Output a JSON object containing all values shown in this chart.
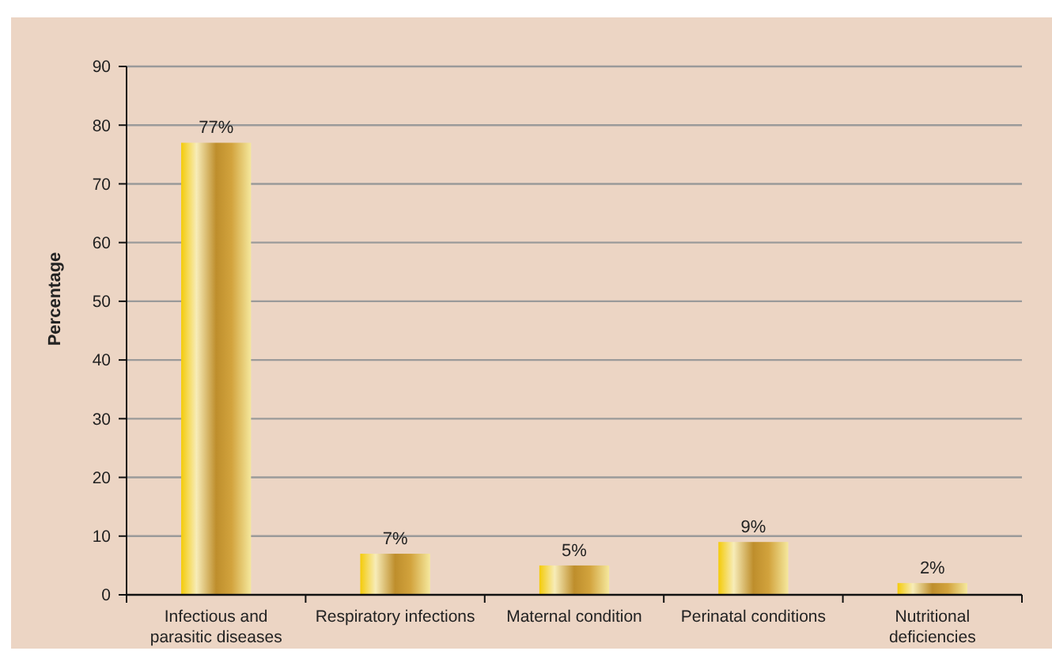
{
  "chart_data": {
    "type": "bar",
    "ylabel": "Percentage",
    "categories": [
      "Infectious and parasitic diseases",
      "Respiratory infections",
      "Maternal condition",
      "Perinatal conditions",
      "Nutritional deficiencies"
    ],
    "values": [
      77,
      7,
      5,
      9,
      2
    ],
    "value_labels": [
      "77%",
      "7%",
      "5%",
      "9%",
      "2%"
    ],
    "color": "#c8962e",
    "ylim": [
      0,
      90
    ],
    "yticks": [
      0,
      10,
      20,
      30,
      40,
      50,
      60,
      70,
      80,
      90
    ],
    "grid": "y"
  }
}
